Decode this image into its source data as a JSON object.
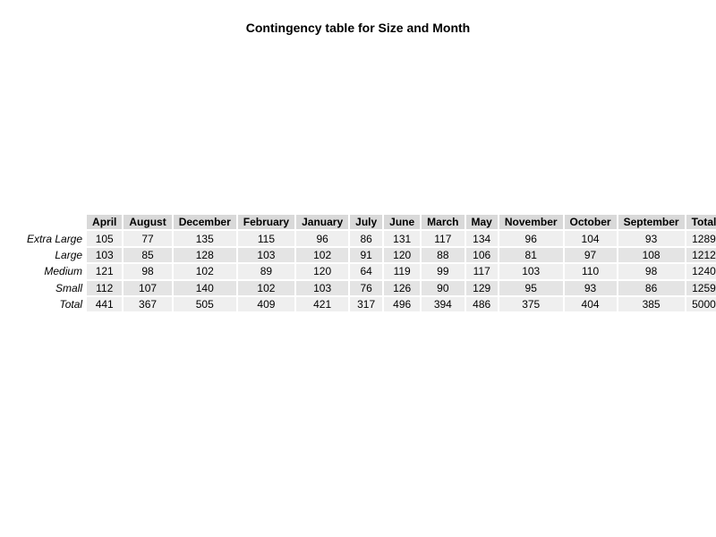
{
  "chart_data": {
    "type": "table",
    "title": "Contingency table for Size and Month",
    "columns": [
      "April",
      "August",
      "December",
      "February",
      "January",
      "July",
      "June",
      "March",
      "May",
      "November",
      "October",
      "September",
      "Total"
    ],
    "rows": [
      {
        "label": "Extra Large",
        "values": [
          "105",
          "77",
          "135",
          "115",
          "96",
          "86",
          "131",
          "117",
          "134",
          "96",
          "104",
          "93",
          "1289"
        ]
      },
      {
        "label": "Large",
        "values": [
          "103",
          "85",
          "128",
          "103",
          "102",
          "91",
          "120",
          "88",
          "106",
          "81",
          "97",
          "108",
          "1212"
        ]
      },
      {
        "label": "Medium",
        "values": [
          "121",
          "98",
          "102",
          "89",
          "120",
          "64",
          "119",
          "99",
          "117",
          "103",
          "110",
          "98",
          "1240"
        ]
      },
      {
        "label": "Small",
        "values": [
          "112",
          "107",
          "140",
          "102",
          "103",
          "76",
          "126",
          "90",
          "129",
          "95",
          "93",
          "86",
          "1259"
        ]
      },
      {
        "label": "Total",
        "values": [
          "441",
          "367",
          "505",
          "409",
          "421",
          "317",
          "496",
          "394",
          "486",
          "375",
          "404",
          "385",
          "5000"
        ]
      }
    ],
    "header_color": "#d9d9d9",
    "row_band_colors": [
      "#efefef",
      "#e4e4e4"
    ]
  }
}
